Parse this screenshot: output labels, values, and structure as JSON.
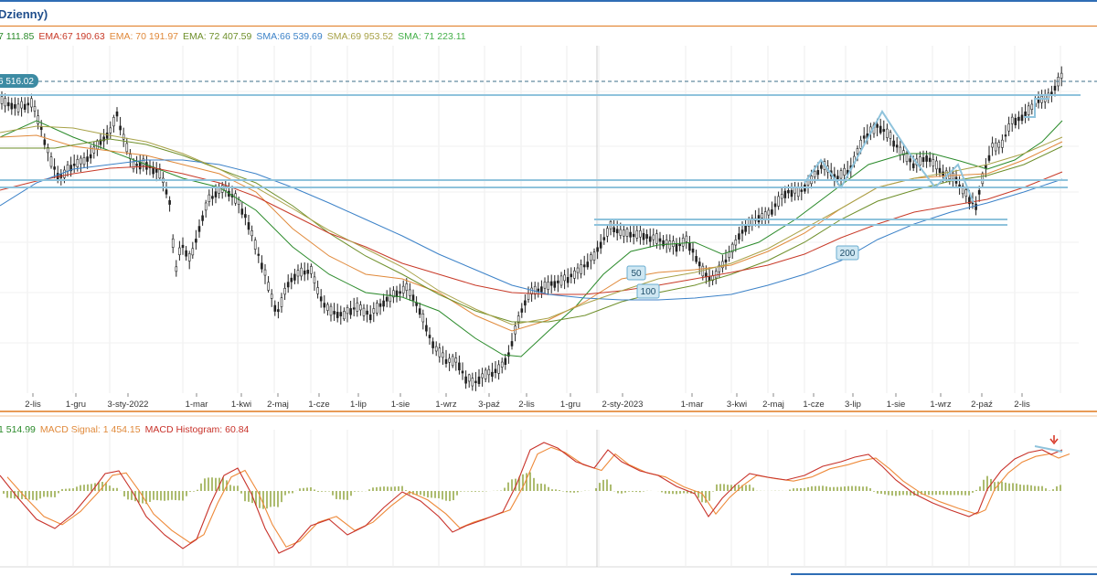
{
  "colors": {
    "ema_a": "#2a8a2a",
    "ema_b": "#c83a28",
    "ema_c": "#e0893a",
    "ema_d": "#6e8f2a",
    "sma_a": "#3c82c8",
    "sma_b": "#a8a248",
    "sma_c": "#45b04a",
    "macd": "#c8322a",
    "signal": "#ee8a3a",
    "hist": "#8aa032",
    "trend": "#8fc3dc",
    "label_fill": "#cfe7f2",
    "label_stroke": "#6aaed0",
    "price_tag": "#3d8ba3",
    "candle": "#222222",
    "frame": "#e07a1f"
  },
  "header": {
    "title": "Dzienny)"
  },
  "legend": [
    {
      "text": "7 111.85",
      "color": "#2a8a2a"
    },
    {
      "text": "EMA:67 190.63",
      "color": "#c83a28"
    },
    {
      "text": "EMA: 70 191.97",
      "color": "#e0893a"
    },
    {
      "text": "EMA: 72 407.59",
      "color": "#6e8f2a"
    },
    {
      "text": "SMA:66 539.69",
      "color": "#3c82c8"
    },
    {
      "text": "SMA:69 953.52",
      "color": "#a8a248"
    },
    {
      "text": "SMA: 71 223.11",
      "color": "#45b04a"
    }
  ],
  "price_tag": "6 516.02",
  "macd_legend": [
    {
      "text": "1 514.99",
      "color": "#2a8a2a"
    },
    {
      "text": "MACD Signal: 1 454.15",
      "color": "#e0893a"
    },
    {
      "text": "MACD Histogram: 60.84",
      "color": "#c8322a"
    }
  ],
  "chart_data": {
    "type": "candlestick",
    "x_tick_labels": [
      "2-lis",
      "1-gru",
      "3-sty-2022",
      "1-mar",
      "1-kwi",
      "2-maj",
      "1-cze",
      "1-lip",
      "1-sie",
      "1-wrz",
      "3-paź",
      "2-lis",
      "1-gru",
      "2-sty-2023",
      "1-mar",
      "3-kwi",
      "2-maj",
      "1-cze",
      "3-lip",
      "1-sie",
      "1-wrz",
      "2-paź",
      "2-lis"
    ],
    "annotations": [
      "50",
      "100",
      "200"
    ],
    "macd": {
      "macd": 1514.99,
      "signal": 1454.15,
      "histogram": 60.84
    }
  }
}
